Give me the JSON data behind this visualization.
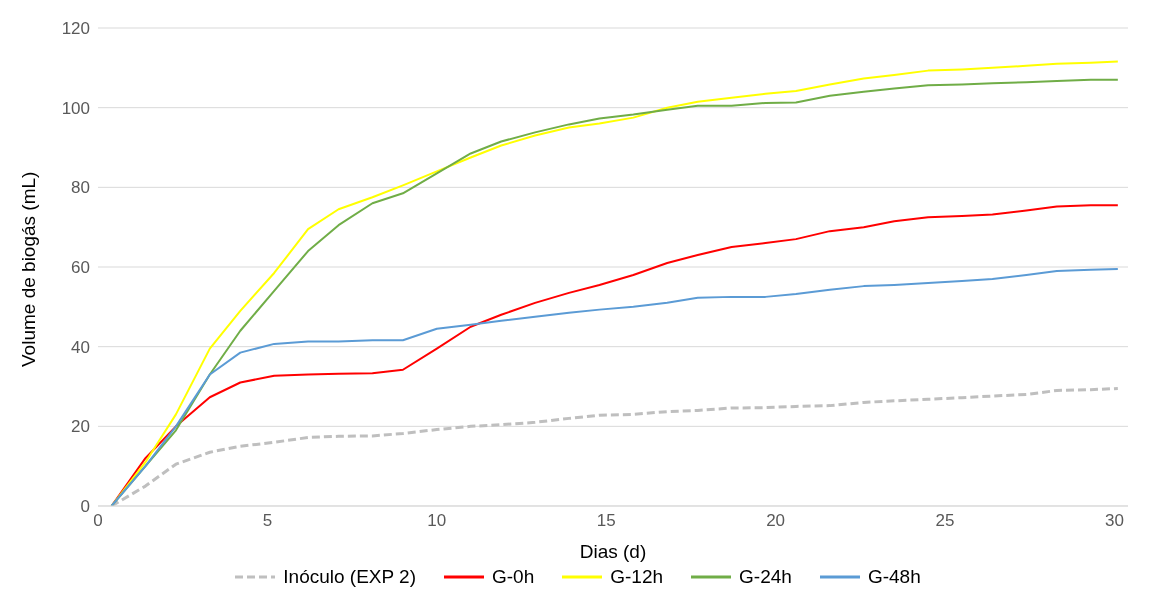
{
  "chart_data": {
    "type": "line",
    "xlabel": "Dias (d)",
    "ylabel": "Volume de biogás (mL)",
    "x": [
      0.4,
      1.4,
      2.3,
      3.3,
      4.2,
      5.2,
      6.2,
      7.1,
      8.1,
      9.0,
      10.0,
      11.0,
      11.9,
      12.9,
      13.9,
      14.8,
      15.8,
      16.8,
      17.7,
      18.7,
      19.7,
      20.6,
      21.6,
      22.6,
      23.5,
      24.5,
      25.5,
      26.4,
      27.4,
      28.3,
      29.3,
      30.1
    ],
    "series": [
      {
        "name": "Inóculo (EXP 2)",
        "color": "#bfbfbf",
        "line_style": "dashed",
        "values": [
          0,
          5,
          10.5,
          13.5,
          15,
          16,
          17.2,
          17.5,
          17.6,
          18.2,
          19.2,
          20,
          20.4,
          21,
          22,
          22.8,
          23,
          23.7,
          24,
          24.6,
          24.7,
          25,
          25.2,
          26,
          26.4,
          26.8,
          27.2,
          27.6,
          28,
          29,
          29.2,
          29.5
        ]
      },
      {
        "name": "G-0h",
        "color": "#ff0000",
        "values": [
          0,
          12,
          20,
          27.3,
          31,
          32.7,
          33,
          33.2,
          33.3,
          34.2,
          39.5,
          45,
          48,
          51,
          53.5,
          55.5,
          58,
          61,
          63,
          65,
          66,
          67,
          69,
          70,
          71.5,
          72.5,
          72.8,
          73.2,
          74.2,
          75.2,
          75.5,
          75.5
        ]
      },
      {
        "name": "G-12h",
        "color": "#ffff00",
        "values": [
          0,
          11,
          23,
          39.5,
          49,
          58.5,
          69.5,
          74.5,
          77.5,
          80.5,
          84,
          87.5,
          90.5,
          93,
          95,
          96,
          97.5,
          100,
          101.5,
          102.5,
          103.5,
          104.2,
          105.8,
          107.3,
          108.2,
          109.3,
          109.6,
          110,
          110.5,
          111,
          111.3,
          111.6
        ]
      },
      {
        "name": "G-24h",
        "color": "#70ad47",
        "values": [
          0,
          10,
          19,
          33,
          44,
          54,
          64,
          70.5,
          76,
          78.5,
          83.5,
          88.5,
          91.5,
          93.8,
          95.8,
          97.3,
          98.3,
          99.5,
          100.5,
          100.5,
          101.2,
          101.3,
          103,
          104,
          104.8,
          105.6,
          105.8,
          106.1,
          106.4,
          106.7,
          107,
          107
        ]
      },
      {
        "name": "G-48h",
        "color": "#5b9bd5",
        "values": [
          0,
          10,
          20,
          33,
          38.5,
          40.7,
          41.3,
          41.3,
          41.6,
          41.6,
          44.5,
          45.5,
          46.5,
          47.5,
          48.5,
          49.3,
          50,
          51,
          52.3,
          52.5,
          52.5,
          53.2,
          54.3,
          55.2,
          55.5,
          56,
          56.5,
          57,
          58,
          59,
          59.3,
          59.5
        ]
      }
    ],
    "xlim": [
      0,
      30.4
    ],
    "xticks": [
      0,
      5,
      10,
      15,
      20,
      25,
      30
    ],
    "ylim": [
      0,
      120
    ],
    "yticks": [
      0,
      20,
      40,
      60,
      80,
      100,
      120
    ],
    "grid": "y",
    "legend": "bottom",
    "marker": "none",
    "line_style": "solid"
  }
}
